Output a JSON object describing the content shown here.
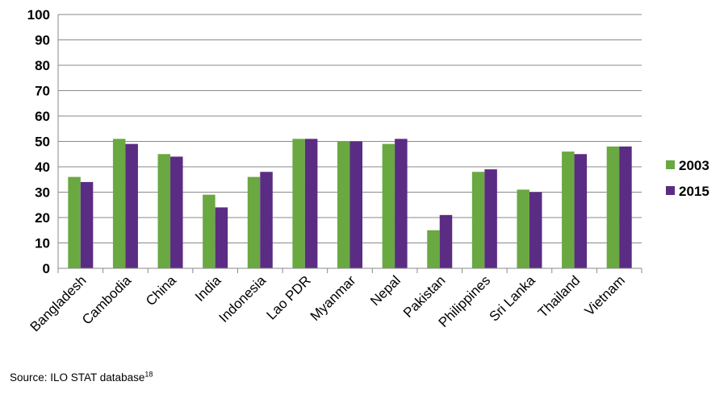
{
  "chart_data": {
    "type": "bar",
    "categories": [
      "Bangladesh",
      "Cambodia",
      "China",
      "India",
      "Indonesia",
      "Lao PDR",
      "Myanmar",
      "Nepal",
      "Pakistan",
      "Philippines",
      "Sri Lanka",
      "Thailand",
      "Vietnam"
    ],
    "series": [
      {
        "name": "2003",
        "color": "#6aa842",
        "values": [
          36,
          51,
          45,
          29,
          36,
          51,
          50,
          49,
          15,
          38,
          31,
          46,
          48
        ]
      },
      {
        "name": "2015",
        "color": "#5b2c83",
        "values": [
          34,
          49,
          44,
          24,
          38,
          51,
          50,
          51,
          21,
          39,
          30,
          45,
          48
        ]
      }
    ],
    "ylim": [
      0,
      100
    ],
    "yticks": [
      0,
      10,
      20,
      30,
      40,
      50,
      60,
      70,
      80,
      90,
      100
    ],
    "grid": true,
    "legend_position": "right",
    "title": "",
    "xlabel": "",
    "ylabel": ""
  },
  "footer": {
    "source_text": "Source: ILO STAT database",
    "source_note": "18"
  }
}
